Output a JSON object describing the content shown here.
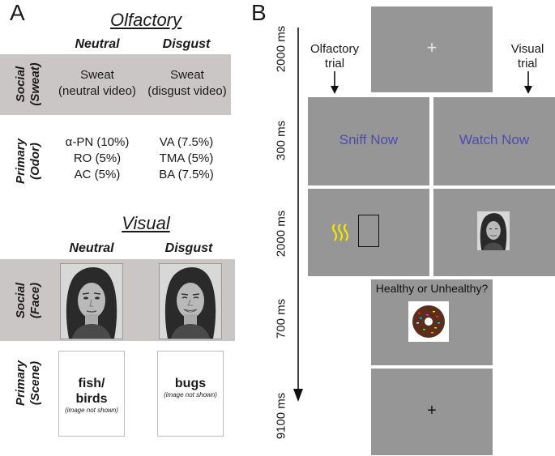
{
  "panel_a": {
    "letter": "A",
    "olfactory": {
      "title": "Olfactory",
      "columns": [
        "Neutral",
        "Disgust"
      ],
      "rows": [
        {
          "label_line1": "Social",
          "label_line2": "(Sweat)",
          "neutral": [
            "Sweat",
            "(neutral video)"
          ],
          "disgust": [
            "Sweat",
            "(disgust video)"
          ]
        },
        {
          "label_line1": "Primary",
          "label_line2": "(Odor)",
          "neutral": [
            "α-PN (10%)",
            "RO (5%)",
            "AC (5%)"
          ],
          "disgust": [
            "VA (7.5%)",
            "TMA (5%)",
            "BA (7.5%)"
          ]
        }
      ]
    },
    "visual": {
      "title": "Visual",
      "columns": [
        "Neutral",
        "Disgust"
      ],
      "rows": [
        {
          "label_line1": "Social",
          "label_line2": "(Face)"
        },
        {
          "label_line1": "Primary",
          "label_line2": "(Scene)",
          "neutral": {
            "main_line1": "fish/",
            "main_line2": "birds",
            "note": "(image not shown)"
          },
          "disgust": {
            "main_line1": "bugs",
            "note": "(image not shown)"
          }
        }
      ]
    }
  },
  "panel_b": {
    "letter": "B",
    "timings": [
      "2000 ms",
      "300 ms",
      "2000 ms",
      "700 ms",
      "9100 ms"
    ],
    "olfactory_trial": [
      "Olfactory",
      "trial"
    ],
    "visual_trial": [
      "Visual",
      "trial"
    ],
    "sniff_now": "Sniff Now",
    "watch_now": "Watch Now",
    "rating_question": "Healthy or Unhealthy?",
    "fixation": "+"
  },
  "colors": {
    "screen_gray": "#969696",
    "band_gray": "#c9c6c5",
    "instruction_blue": "#4b4bb8",
    "odor_yellow": "#f2e600"
  }
}
